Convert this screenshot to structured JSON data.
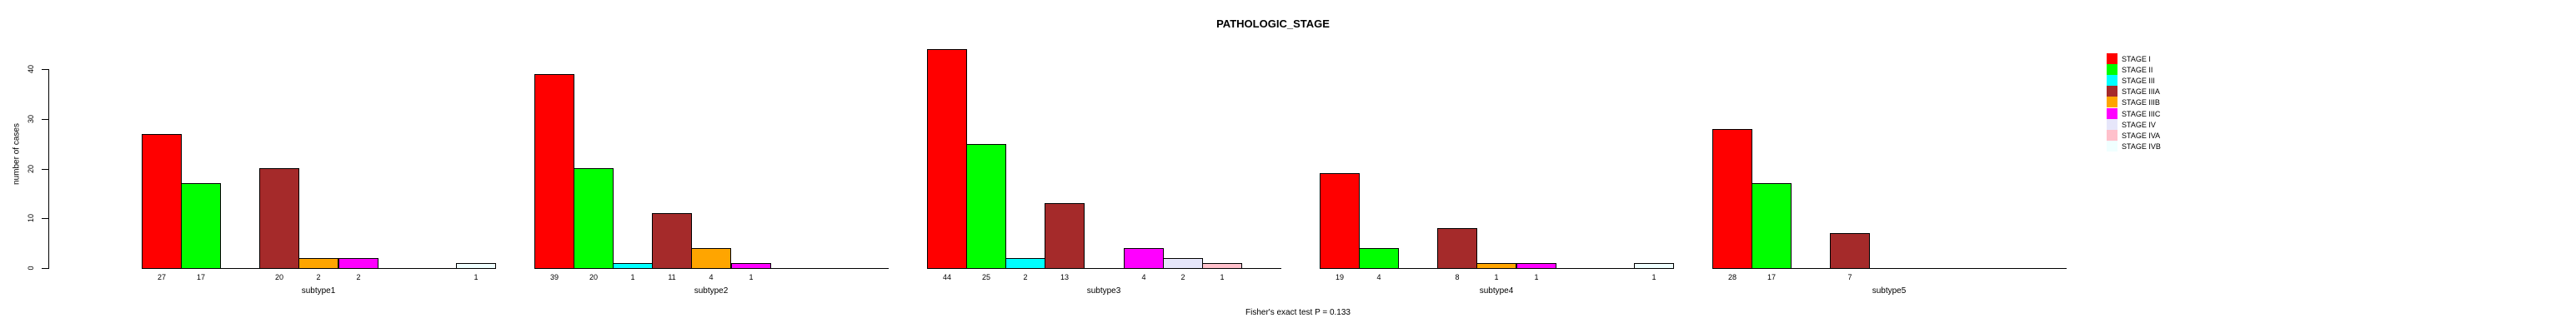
{
  "chart_data": {
    "type": "bar",
    "title": "PATHOLOGIC_STAGE",
    "xlabel": "",
    "ylabel": "number of cases",
    "annotation": "Fisher's exact test P = 0.133",
    "ylim": [
      0,
      45
    ],
    "yticks": [
      0,
      10,
      20,
      30,
      40
    ],
    "grid": false,
    "legend_position": "right",
    "bar_border_color": "#000000",
    "categories": [
      "subtype1",
      "subtype2",
      "subtype3",
      "subtype4",
      "subtype5"
    ],
    "series": [
      {
        "name": "STAGE I",
        "color": "#FF0000",
        "values": [
          27,
          39,
          44,
          19,
          28
        ]
      },
      {
        "name": "STAGE II",
        "color": "#00FF00",
        "values": [
          17,
          20,
          25,
          4,
          17
        ]
      },
      {
        "name": "STAGE III",
        "color": "#00FFFF",
        "values": [
          0,
          1,
          2,
          0,
          0
        ]
      },
      {
        "name": "STAGE IIIA",
        "color": "#A52A2A",
        "values": [
          20,
          11,
          13,
          8,
          7
        ]
      },
      {
        "name": "STAGE IIIB",
        "color": "#FFA500",
        "values": [
          2,
          4,
          0,
          1,
          0
        ]
      },
      {
        "name": "STAGE IIIC",
        "color": "#FF00FF",
        "values": [
          2,
          1,
          4,
          1,
          0
        ]
      },
      {
        "name": "STAGE IV",
        "color": "#E6E6FA",
        "values": [
          0,
          0,
          2,
          0,
          0
        ]
      },
      {
        "name": "STAGE IVA",
        "color": "#FFC0CB",
        "values": [
          0,
          0,
          1,
          0,
          0
        ]
      },
      {
        "name": "STAGE IVB",
        "color": "#F0FFFF",
        "values": [
          1,
          0,
          0,
          1,
          0
        ]
      }
    ]
  }
}
